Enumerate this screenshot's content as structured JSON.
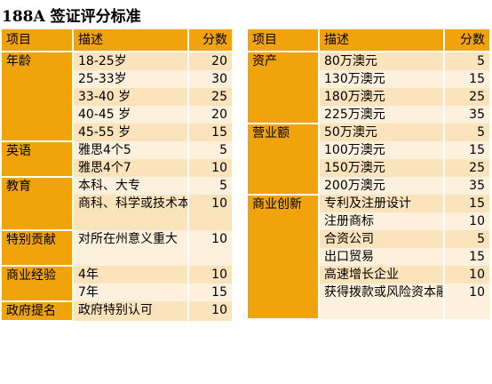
{
  "title": "188A 签证评分标准",
  "headers": {
    "category": "项目",
    "item": "描述",
    "points": "分数"
  },
  "left_table": {
    "age": {
      "name": "年龄",
      "items": [
        {
          "desc": "18-25岁",
          "pts": "20"
        },
        {
          "desc": "25-33岁",
          "pts": "30"
        },
        {
          "desc": "33-40 岁",
          "pts": "25"
        },
        {
          "desc": "40-45 岁",
          "pts": "20"
        },
        {
          "desc": "45-55 岁",
          "pts": "15"
        }
      ]
    },
    "english": {
      "name": "英语",
      "items": [
        {
          "desc": "雅思4个5",
          "pts": "5"
        },
        {
          "desc": "雅思4个7",
          "pts": "10"
        }
      ]
    },
    "education": {
      "name": "教育",
      "items": [
        {
          "desc": "本科、大专",
          "pts": "5"
        },
        {
          "desc": "商科、科学或技术本科",
          "pts": "10"
        }
      ]
    },
    "special": {
      "name": "特别贡献",
      "items": [
        {
          "desc": "对所在州意义重大",
          "pts": "10"
        }
      ]
    },
    "business_exp": {
      "name": "商业经验",
      "items": [
        {
          "desc": "4年",
          "pts": "10"
        },
        {
          "desc": "7年",
          "pts": "15"
        }
      ]
    },
    "nomination": {
      "name": "政府提名",
      "items": [
        {
          "desc": "政府特别认可",
          "pts": "10"
        }
      ]
    }
  },
  "right_table": {
    "assets": {
      "name": "资产",
      "items": [
        {
          "desc": "80万澳元",
          "pts": "5"
        },
        {
          "desc": "130万澳元",
          "pts": "15"
        },
        {
          "desc": "180万澳元",
          "pts": "25"
        },
        {
          "desc": "225万澳元",
          "pts": "35"
        }
      ]
    },
    "turnover": {
      "name": "营业额",
      "items": [
        {
          "desc": "50万澳元",
          "pts": "5"
        },
        {
          "desc": "100万澳元",
          "pts": "15"
        },
        {
          "desc": "150万澳元",
          "pts": "25"
        },
        {
          "desc": "200万澳元",
          "pts": "35"
        }
      ]
    },
    "innovation": {
      "name": "商业创新",
      "items": [
        {
          "desc": "专利及注册设计",
          "pts": "15"
        },
        {
          "desc": "注册商标",
          "pts": "10"
        },
        {
          "desc": "合资公司",
          "pts": "5"
        },
        {
          "desc": "出口贸易",
          "pts": "15"
        },
        {
          "desc": "高速增长企业",
          "pts": "10"
        },
        {
          "desc": "获得拨款或风险资本融资",
          "pts": "10"
        }
      ]
    }
  }
}
